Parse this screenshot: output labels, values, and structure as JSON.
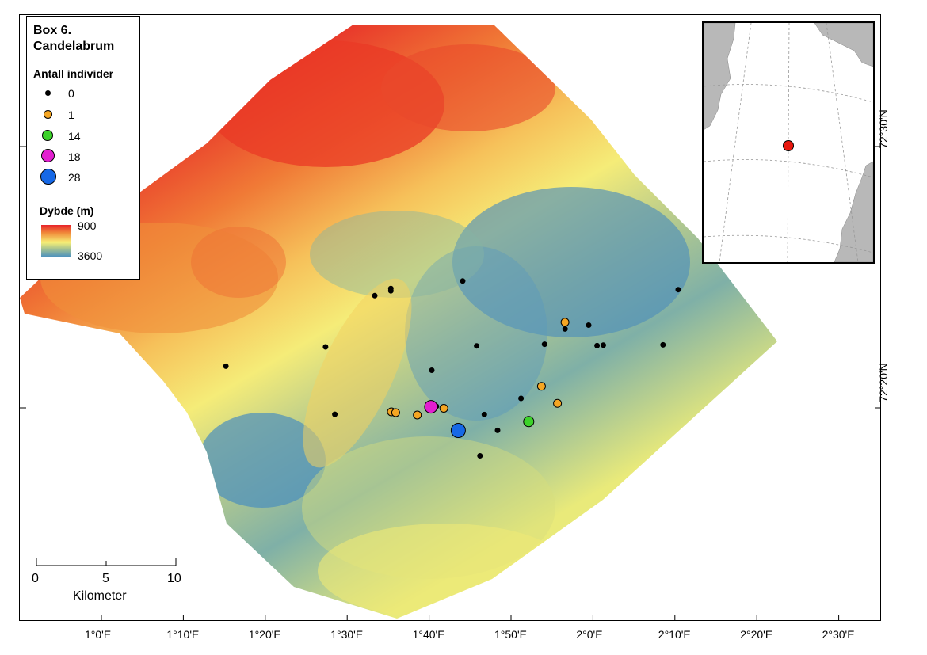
{
  "legend": {
    "title_line1": "Box 6.",
    "title_line2": "Candelabrum",
    "count_title": "Antall individer",
    "counts": [
      {
        "label": "0",
        "color": "#000000"
      },
      {
        "label": "1",
        "color": "#f5a623"
      },
      {
        "label": "14",
        "color": "#3cd22a"
      },
      {
        "label": "18",
        "color": "#e21fd0"
      },
      {
        "label": "28",
        "color": "#1668e6"
      }
    ],
    "depth_title": "Dybde (m)",
    "depth_high": "900",
    "depth_low": "3600"
  },
  "inset": {
    "lat_label": "72°30'N",
    "marker_color": "#e8180f"
  },
  "axes": {
    "lon_labels": [
      "1°0'E",
      "1°10'E",
      "1°20'E",
      "1°30'E",
      "1°40'E",
      "1°50'E",
      "2°0'E",
      "2°10'E",
      "2°20'E",
      "2°30'E"
    ],
    "lat_labels": [
      "72°20'N"
    ]
  },
  "scalebar": {
    "ticks": [
      "0",
      "5",
      "10"
    ],
    "unit": "Kilometer"
  },
  "stations": [
    {
      "lon": 1.7368,
      "lat": 72.4918,
      "count": 0
    },
    {
      "lon": 1.5903,
      "lat": 72.4825,
      "count": 0
    },
    {
      "lon": 1.5903,
      "lat": 72.4795,
      "count": 0
    },
    {
      "lon": 1.5575,
      "lat": 72.4735,
      "count": 0
    },
    {
      "lon": 2.176,
      "lat": 72.481,
      "count": 0
    },
    {
      "lon": 1.9453,
      "lat": 72.4403,
      "count": 1
    },
    {
      "lon": 1.9936,
      "lat": 72.4367,
      "count": 0
    },
    {
      "lon": 1.9454,
      "lat": 72.4318,
      "count": 0
    },
    {
      "lon": 1.7652,
      "lat": 72.4107,
      "count": 0
    },
    {
      "lon": 1.9036,
      "lat": 72.4128,
      "count": 0
    },
    {
      "lon": 2.0107,
      "lat": 72.411,
      "count": 0
    },
    {
      "lon": 2.0234,
      "lat": 72.4116,
      "count": 0
    },
    {
      "lon": 2.145,
      "lat": 72.412,
      "count": 0
    },
    {
      "lon": 1.4572,
      "lat": 72.4095,
      "count": 0
    },
    {
      "lon": 1.6738,
      "lat": 72.3803,
      "count": 0
    },
    {
      "lon": 1.254,
      "lat": 72.3853,
      "count": 0
    },
    {
      "lon": 1.8974,
      "lat": 72.3603,
      "count": 1
    },
    {
      "lon": 1.8557,
      "lat": 72.3452,
      "count": 0
    },
    {
      "lon": 1.93,
      "lat": 72.3407,
      "count": 0
    },
    {
      "lon": 1.93,
      "lat": 72.339,
      "count": 1
    },
    {
      "lon": 1.6831,
      "lat": 72.3353,
      "count": 0
    },
    {
      "lon": 1.6721,
      "lat": 72.3347,
      "count": 18
    },
    {
      "lon": 1.6984,
      "lat": 72.3328,
      "count": 1
    },
    {
      "lon": 1.4762,
      "lat": 72.3253,
      "count": 0
    },
    {
      "lon": 1.5915,
      "lat": 72.3284,
      "count": 1
    },
    {
      "lon": 1.6001,
      "lat": 72.3274,
      "count": 1
    },
    {
      "lon": 1.6442,
      "lat": 72.3244,
      "count": 1
    },
    {
      "lon": 1.7808,
      "lat": 72.325,
      "count": 0
    },
    {
      "lon": 1.8713,
      "lat": 72.3162,
      "count": 14
    },
    {
      "lon": 1.7277,
      "lat": 72.3051,
      "count": 28
    },
    {
      "lon": 1.8078,
      "lat": 72.3052,
      "count": 0
    },
    {
      "lon": 1.772,
      "lat": 72.2735,
      "count": 0
    }
  ]
}
